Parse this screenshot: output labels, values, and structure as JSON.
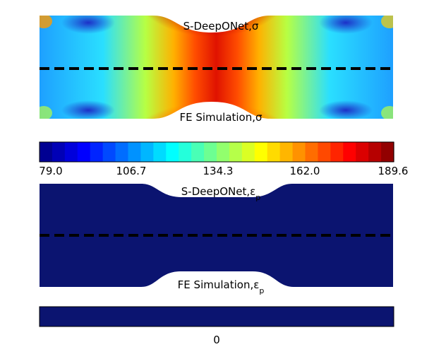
{
  "panels": {
    "stress": {
      "top_label": "S-DeepONet,σ",
      "bottom_label": "FE Simulation,σ"
    },
    "strain": {
      "top_label": "S-DeepONet,εp",
      "bottom_label": "FE Simulation,εp"
    }
  },
  "colorbar_stress": {
    "ticks": [
      "79.0",
      "106.7",
      "134.3",
      "162.0",
      "189.6"
    ],
    "min": 79.0,
    "max": 189.6,
    "levels": 28,
    "colormap": "jet"
  },
  "colorbar_strain": {
    "ticks": [
      "0"
    ],
    "fill": "#0b1470"
  },
  "colors": {
    "divider": "#000000",
    "strain_fill": "#0b1470",
    "low": "#1f4fd8",
    "high": "#7f0000"
  }
}
